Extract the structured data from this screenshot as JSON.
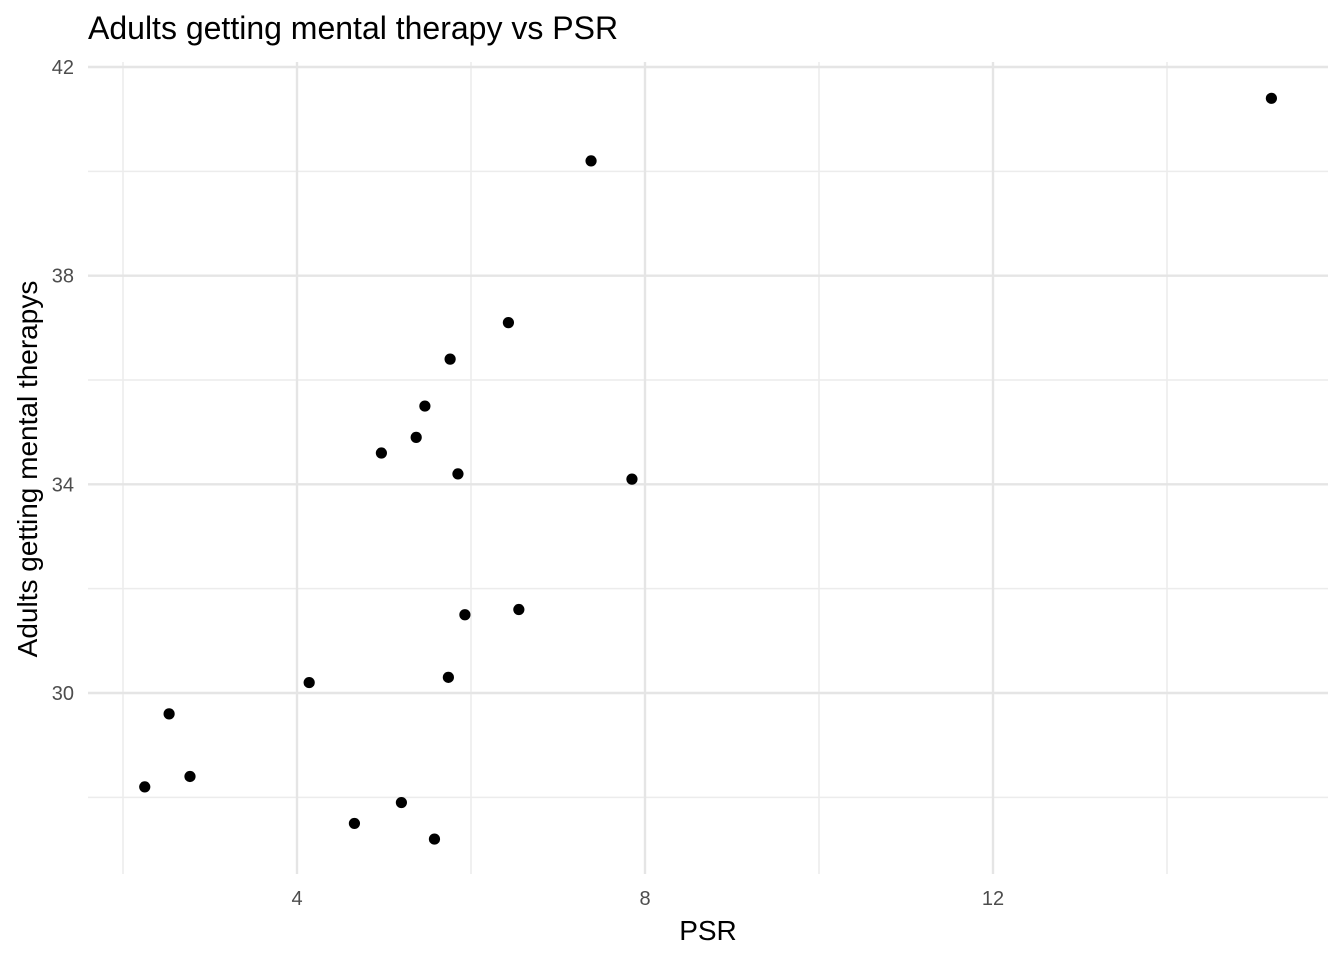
{
  "chart_data": {
    "type": "scatter",
    "title": "Adults getting mental therapy vs PSR",
    "xlabel": "PSR",
    "ylabel": "Adults getting mental therapys",
    "xlim": [
      1.9,
      15.8
    ],
    "ylim": [
      26.5,
      42.1
    ],
    "x_major_ticks": [
      4,
      8,
      12
    ],
    "x_tick_labels": [
      "4",
      "8",
      "12"
    ],
    "x_minor_ticks": [
      2,
      6,
      10,
      14
    ],
    "y_major_ticks": [
      30,
      34,
      38,
      42
    ],
    "y_tick_labels": [
      "30",
      "34",
      "38",
      "42"
    ],
    "y_minor_ticks": [
      28,
      32,
      36,
      40
    ],
    "grid": true,
    "point_color": "#000000",
    "points": [
      {
        "x": 15.2,
        "y": 41.4
      },
      {
        "x": 7.38,
        "y": 40.2
      },
      {
        "x": 6.43,
        "y": 37.1
      },
      {
        "x": 5.76,
        "y": 36.4
      },
      {
        "x": 5.47,
        "y": 35.5
      },
      {
        "x": 5.37,
        "y": 34.9
      },
      {
        "x": 4.97,
        "y": 34.6
      },
      {
        "x": 5.85,
        "y": 34.2
      },
      {
        "x": 7.85,
        "y": 34.1
      },
      {
        "x": 6.55,
        "y": 31.6
      },
      {
        "x": 5.93,
        "y": 31.5
      },
      {
        "x": 5.74,
        "y": 30.3
      },
      {
        "x": 4.14,
        "y": 30.2
      },
      {
        "x": 2.53,
        "y": 29.6
      },
      {
        "x": 2.77,
        "y": 28.4
      },
      {
        "x": 2.25,
        "y": 28.2
      },
      {
        "x": 5.2,
        "y": 27.9
      },
      {
        "x": 4.66,
        "y": 27.5
      },
      {
        "x": 5.58,
        "y": 27.2
      }
    ]
  }
}
